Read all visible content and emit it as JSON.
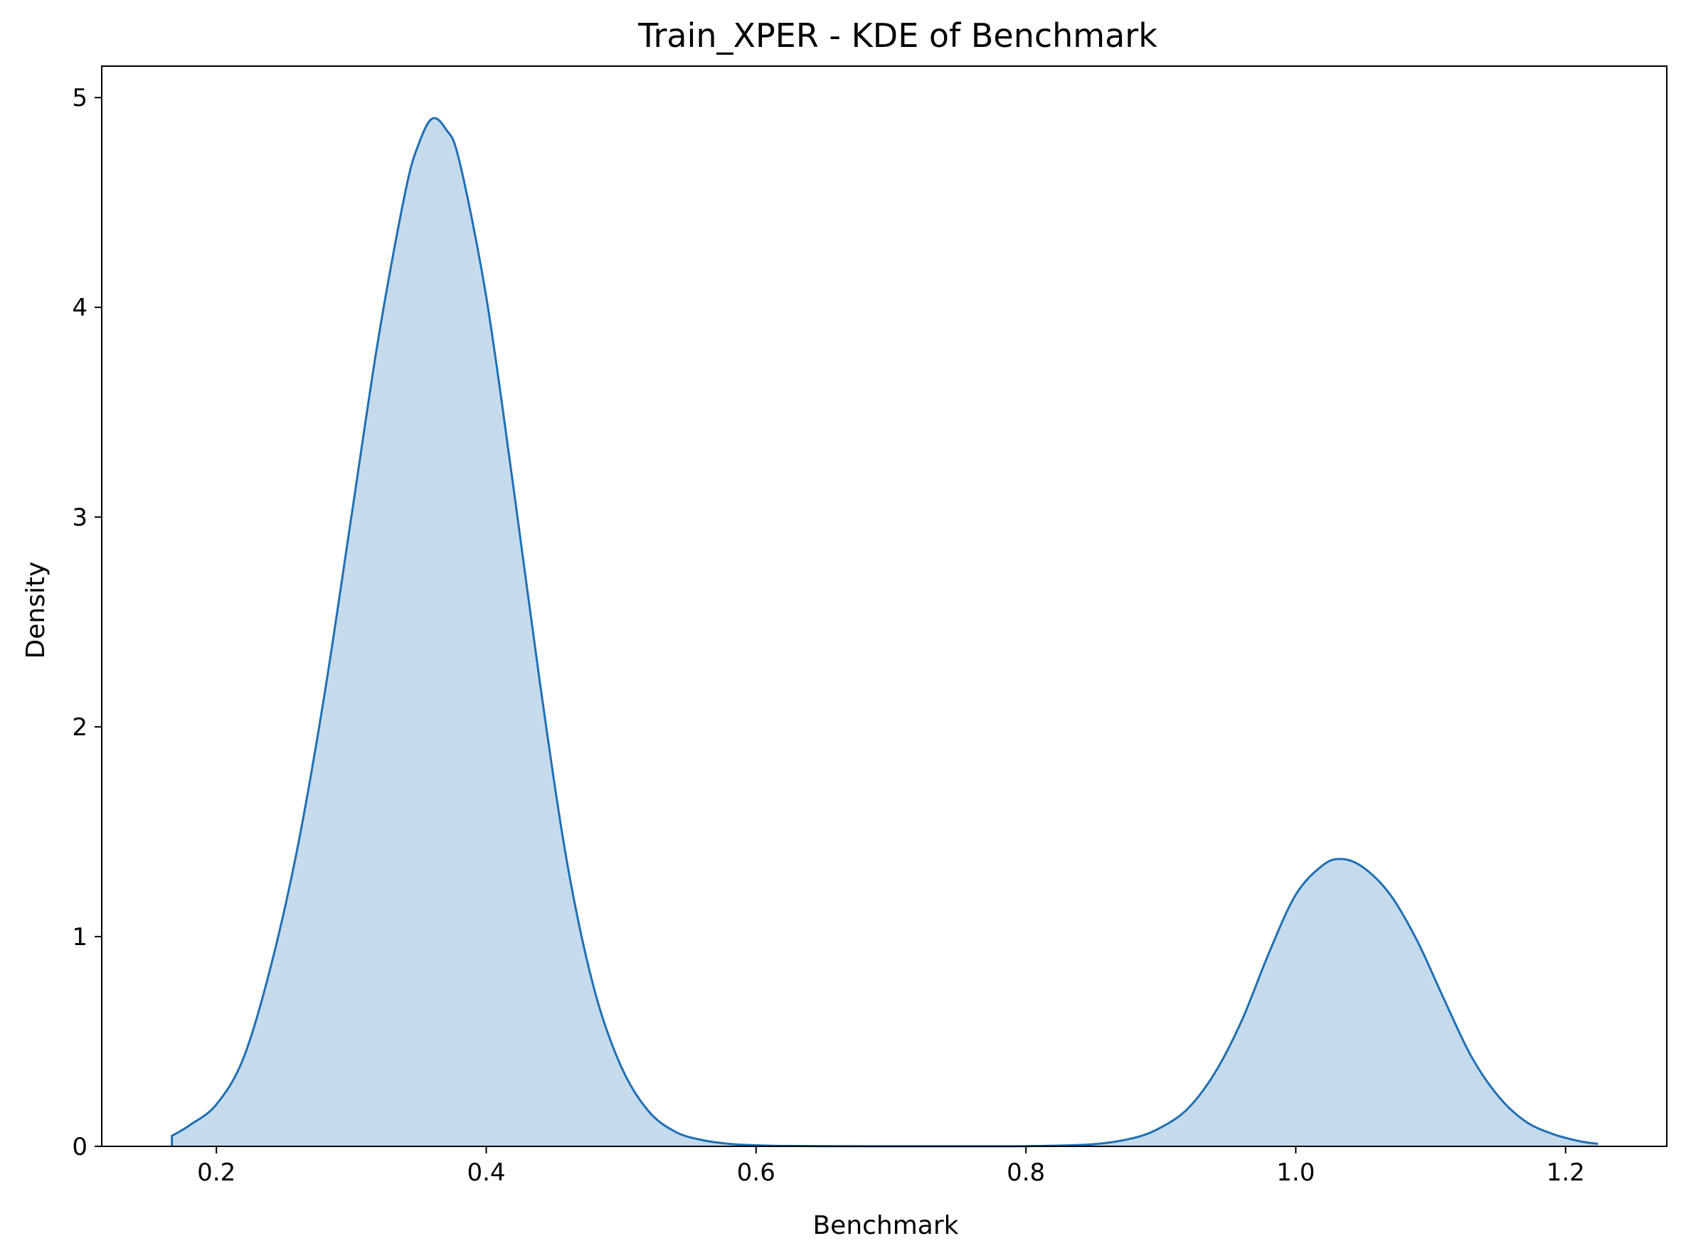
{
  "chart_data": {
    "type": "area",
    "title": "Train_XPER - KDE of Benchmark",
    "xlabel": "Benchmark",
    "ylabel": "Density",
    "xlim": [
      0.115,
      1.275
    ],
    "ylim": [
      0,
      5.15
    ],
    "xticks": [
      0.2,
      0.4,
      0.6,
      0.8,
      1.0,
      1.2
    ],
    "xtick_labels": [
      "0.2",
      "0.4",
      "0.6",
      "0.8",
      "1.0",
      "1.2"
    ],
    "yticks": [
      0,
      1,
      2,
      3,
      4,
      5
    ],
    "ytick_labels": [
      "0",
      "1",
      "2",
      "3",
      "4",
      "5"
    ],
    "grid": false,
    "line_color": "#1f6fb4",
    "fill_color": "#c5dbec",
    "series": [
      {
        "x": [
          0.167,
          0.18,
          0.2,
          0.22,
          0.24,
          0.26,
          0.28,
          0.3,
          0.32,
          0.34,
          0.35,
          0.36,
          0.37,
          0.38,
          0.4,
          0.42,
          0.44,
          0.46,
          0.48,
          0.5,
          0.52,
          0.54,
          0.56,
          0.58,
          0.6,
          0.62,
          0.65,
          0.7,
          0.75,
          0.8,
          0.85,
          0.88,
          0.9,
          0.92,
          0.94,
          0.96,
          0.98,
          1.0,
          1.02,
          1.034,
          1.05,
          1.07,
          1.09,
          1.11,
          1.13,
          1.15,
          1.17,
          1.19,
          1.21,
          1.224
        ],
        "y": [
          0.05,
          0.1,
          0.2,
          0.42,
          0.85,
          1.42,
          2.15,
          3.0,
          3.85,
          4.55,
          4.78,
          4.9,
          4.85,
          4.7,
          4.05,
          3.15,
          2.2,
          1.35,
          0.75,
          0.38,
          0.17,
          0.07,
          0.03,
          0.012,
          0.005,
          0.002,
          0.001,
          0.0005,
          0.0005,
          0.001,
          0.01,
          0.04,
          0.09,
          0.18,
          0.35,
          0.6,
          0.92,
          1.2,
          1.34,
          1.37,
          1.33,
          1.2,
          0.98,
          0.7,
          0.43,
          0.24,
          0.12,
          0.06,
          0.025,
          0.012
        ]
      }
    ]
  }
}
